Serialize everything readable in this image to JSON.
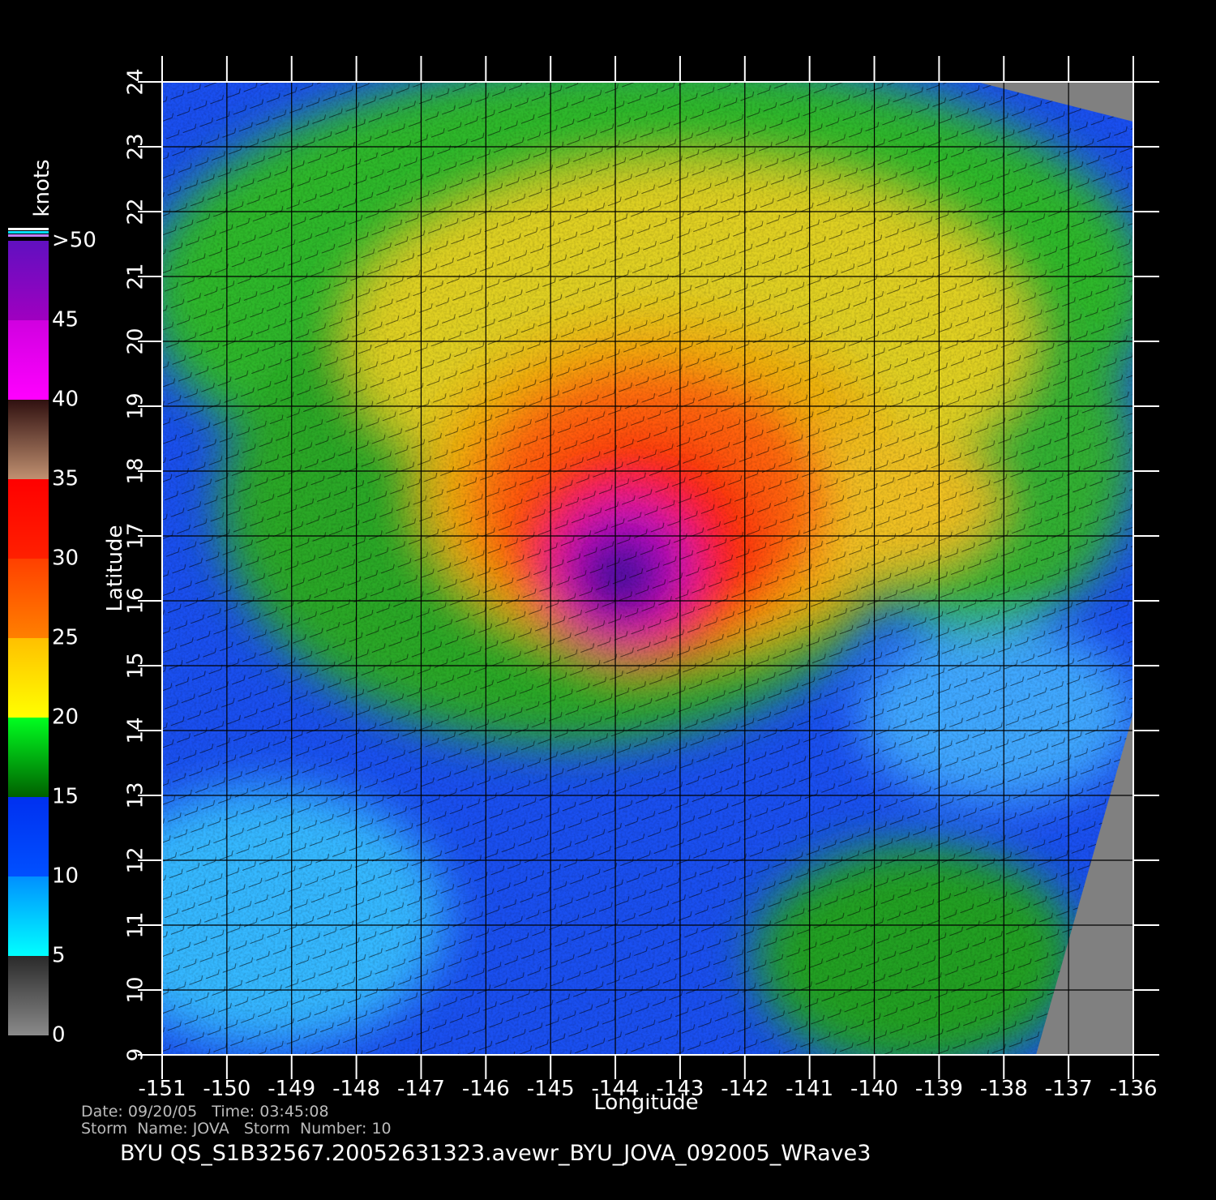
{
  "map": {
    "xlabel": "Longitude",
    "ylabel": "Latitude",
    "xlim": [
      -151,
      -136
    ],
    "ylim": [
      9,
      24
    ],
    "xticks": [
      -151,
      -150,
      -149,
      -148,
      -147,
      -146,
      -145,
      -144,
      -143,
      -142,
      -141,
      -140,
      -139,
      -138,
      -137,
      -136
    ],
    "yticks": [
      9,
      10,
      11,
      12,
      13,
      14,
      15,
      16,
      17,
      18,
      19,
      20,
      21,
      22,
      23,
      24
    ],
    "grid": true,
    "colorbar": {
      "title": "knots",
      "lim": [
        0,
        50
      ],
      "ticks": [
        0,
        5,
        10,
        15,
        20,
        25,
        30,
        35,
        40,
        45,
        {
          "value": 50,
          "label": ">50"
        }
      ],
      "segments": [
        [
          "#8a8a8a",
          "#2a2a2a"
        ],
        [
          "#00ffff",
          "#0090ff"
        ],
        [
          "#0050ff",
          "#0030f0"
        ],
        [
          "#006000",
          "#00ff20"
        ],
        [
          "#ffff00",
          "#ffc000"
        ],
        [
          "#ff8000",
          "#ff4000"
        ],
        [
          "#ff2000",
          "#ff0000"
        ],
        [
          "#c09070",
          "#301010"
        ],
        [
          "#ff00ff",
          "#d000e0"
        ],
        [
          "#a000c0",
          "#6010c0"
        ]
      ]
    },
    "footer": {
      "line1": "Date: 09/20/05   Time: 03:45:08",
      "line2": "Storm  Name: JOVA   Storm  Number: 10",
      "filename": "BYU  QS_S1B32567.20052631323.avewr_BYU_JOVA_092005_WRave3"
    }
  }
}
